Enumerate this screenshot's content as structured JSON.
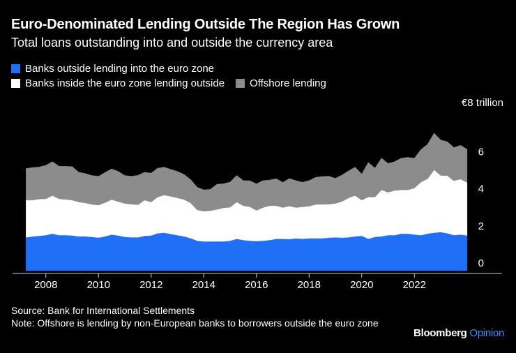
{
  "header": {
    "title": "Euro-Denominated Lending Outside The Region Has Grown",
    "subtitle": "Total loans outstanding into and outside the currency area"
  },
  "legend": [
    {
      "label": "Banks outside lending into the euro zone",
      "color": "#1f6ff7"
    },
    {
      "label": "Banks inside the euro zone lending outside",
      "color": "#ffffff"
    },
    {
      "label": "Offshore lending",
      "color": "#8c8c8c"
    }
  ],
  "footer": {
    "source": "Source: Bank for International Settlements",
    "note": "Note: Offshore is lending by non-European banks to borrowers outside the euro zone"
  },
  "brand": {
    "first": "Bloomberg",
    "second": "Opinion",
    "second_color": "#3b8dff"
  },
  "chart_data": {
    "type": "area",
    "stacked": true,
    "title": "Euro-Denominated Lending Outside The Region Has Grown",
    "ylabel": "€8 trillion",
    "ylim": [
      0,
      8
    ],
    "xlim": [
      2007.0,
      2024.8
    ],
    "y_ticks": [
      0,
      2,
      4,
      6
    ],
    "y_unit_label": "€8 trillion",
    "x_ticks": [
      2008,
      2010,
      2012,
      2014,
      2016,
      2018,
      2020,
      2022
    ],
    "grid": false,
    "legend_position": "top",
    "colors": [
      "#1f6ff7",
      "#ffffff",
      "#8c8c8c"
    ],
    "x": [
      2007.25,
      2007.5,
      2007.75,
      2008.0,
      2008.25,
      2008.5,
      2008.75,
      2009.0,
      2009.25,
      2009.5,
      2009.75,
      2010.0,
      2010.25,
      2010.5,
      2010.75,
      2011.0,
      2011.25,
      2011.5,
      2011.75,
      2012.0,
      2012.25,
      2012.5,
      2012.75,
      2013.0,
      2013.25,
      2013.5,
      2013.75,
      2014.0,
      2014.25,
      2014.5,
      2014.75,
      2015.0,
      2015.25,
      2015.5,
      2015.75,
      2016.0,
      2016.25,
      2016.5,
      2016.75,
      2017.0,
      2017.25,
      2017.5,
      2017.75,
      2018.0,
      2018.25,
      2018.5,
      2018.75,
      2019.0,
      2019.25,
      2019.5,
      2019.75,
      2020.0,
      2020.25,
      2020.5,
      2020.75,
      2021.0,
      2021.25,
      2021.5,
      2021.75,
      2022.0,
      2022.25,
      2022.5,
      2022.75,
      2023.0,
      2023.25,
      2023.5,
      2023.75,
      2024.0
    ],
    "series": [
      {
        "name": "Banks outside lending into the euro zone",
        "values": [
          1.8,
          1.85,
          1.88,
          1.92,
          2.0,
          1.92,
          1.92,
          1.9,
          1.85,
          1.85,
          1.82,
          1.78,
          1.85,
          1.95,
          1.9,
          1.82,
          1.8,
          1.8,
          1.88,
          1.9,
          2.02,
          2.05,
          1.98,
          1.92,
          1.85,
          1.75,
          1.62,
          1.58,
          1.58,
          1.58,
          1.58,
          1.62,
          1.72,
          1.65,
          1.62,
          1.6,
          1.62,
          1.65,
          1.72,
          1.72,
          1.7,
          1.75,
          1.72,
          1.75,
          1.75,
          1.75,
          1.78,
          1.8,
          1.78,
          1.8,
          1.85,
          1.88,
          1.72,
          1.82,
          1.85,
          1.92,
          1.92,
          2.0,
          2.0,
          1.95,
          1.92,
          2.0,
          2.05,
          2.08,
          2.02,
          1.92,
          1.95,
          1.9
        ]
      },
      {
        "name": "Banks inside the euro zone lending outside",
        "values": [
          2.0,
          1.95,
          1.98,
          1.95,
          2.05,
          1.95,
          1.92,
          1.9,
          1.85,
          1.8,
          1.75,
          1.75,
          1.82,
          1.88,
          1.82,
          1.8,
          1.78,
          1.75,
          1.92,
          1.8,
          1.95,
          2.02,
          2.02,
          2.0,
          1.98,
          1.9,
          1.65,
          1.62,
          1.65,
          1.72,
          1.8,
          1.8,
          1.98,
          1.85,
          1.82,
          1.65,
          1.78,
          1.85,
          1.78,
          1.68,
          1.78,
          1.65,
          1.72,
          1.72,
          1.82,
          1.82,
          1.8,
          1.82,
          1.95,
          2.12,
          2.2,
          1.92,
          2.25,
          2.15,
          2.5,
          2.3,
          2.4,
          2.35,
          2.35,
          2.5,
          2.85,
          2.95,
          3.38,
          3.05,
          3.1,
          2.92,
          2.98,
          2.85
        ]
      },
      {
        "name": "Offshore lending",
        "values": [
          1.7,
          1.75,
          1.72,
          1.8,
          1.82,
          1.75,
          1.78,
          1.8,
          1.6,
          1.58,
          1.55,
          1.55,
          1.62,
          1.65,
          1.62,
          1.5,
          1.5,
          1.58,
          1.5,
          1.55,
          1.55,
          1.5,
          1.45,
          1.42,
          1.35,
          1.25,
          1.22,
          1.15,
          1.15,
          1.35,
          1.3,
          1.35,
          1.42,
          1.35,
          1.4,
          1.42,
          1.45,
          1.38,
          1.45,
          1.35,
          1.48,
          1.45,
          1.32,
          1.38,
          1.45,
          1.5,
          1.5,
          1.35,
          1.42,
          1.45,
          1.52,
          1.4,
          1.85,
          1.55,
          1.7,
          1.55,
          1.55,
          1.7,
          1.75,
          1.6,
          1.75,
          1.85,
          1.97,
          1.9,
          1.82,
          1.78,
          1.82,
          1.78
        ]
      }
    ]
  }
}
